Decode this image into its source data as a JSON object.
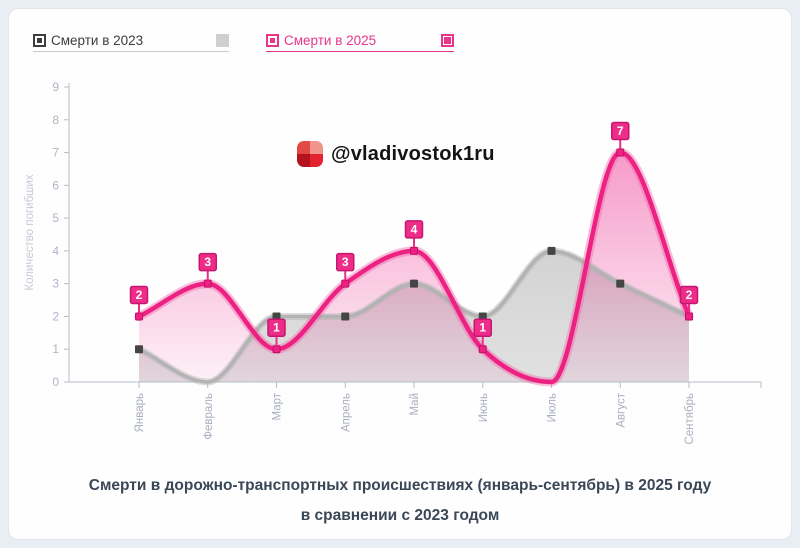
{
  "legend": {
    "items": [
      {
        "label": "Смерти в 2023",
        "color": "#3d3d3d",
        "accent": "#c9c9c9"
      },
      {
        "label": "Смерти в 2025",
        "color": "#e8358a",
        "accent": "#e8358a"
      }
    ]
  },
  "watermark": {
    "handle": "@vladivostok1ru",
    "logo_colors": [
      "#e14a44",
      "#f1948e",
      "#b5121f",
      "#e32330"
    ]
  },
  "caption": {
    "line1": "Смерти в дорожно-транспортных происшествиях (январь-сентябрь) в 2025 году",
    "line2": "в сравнении с 2023 годом"
  },
  "chart_data": {
    "type": "line",
    "categories": [
      "Январь",
      "Февраль",
      "Март",
      "Апрель",
      "Май",
      "Июнь",
      "Июль",
      "Август",
      "Сентябрь"
    ],
    "series": [
      {
        "name": "Смерти в 2023",
        "values": [
          1,
          0,
          2,
          2,
          3,
          2,
          4,
          3,
          2
        ],
        "line_color": "#b3b3b3",
        "halo_color": "rgba(175,175,175,0.40)",
        "marker_color": "#454545",
        "fill_top": "rgba(110,110,110,0.46)",
        "fill_bottom": "rgba(150,150,150,0.28)"
      },
      {
        "name": "Смерти в 2025",
        "values": [
          2,
          3,
          1,
          3,
          4,
          1,
          0,
          7,
          2
        ],
        "line_color": "#ec2182",
        "halo_color": "rgba(240,100,170,0.42)",
        "marker_color": "#ec2182",
        "marker_stroke": "#c21168",
        "label_fill": "#ed2d88",
        "label_stroke": "#c51672",
        "fill_top": "rgba(236,30,135,0.55)",
        "fill_bottom": "rgba(236,30,135,0.06)"
      }
    ],
    "ylabel": "Количество погибших",
    "ylim": [
      0,
      9
    ],
    "yticks": [
      0,
      1,
      2,
      3,
      4,
      5,
      6,
      7,
      8,
      9
    ],
    "grid": false,
    "legend_position": "top",
    "axis_color": "#b6bcc8",
    "tick_label_color": "#aeb5c4",
    "axis_title_color": "#c5cad6"
  }
}
